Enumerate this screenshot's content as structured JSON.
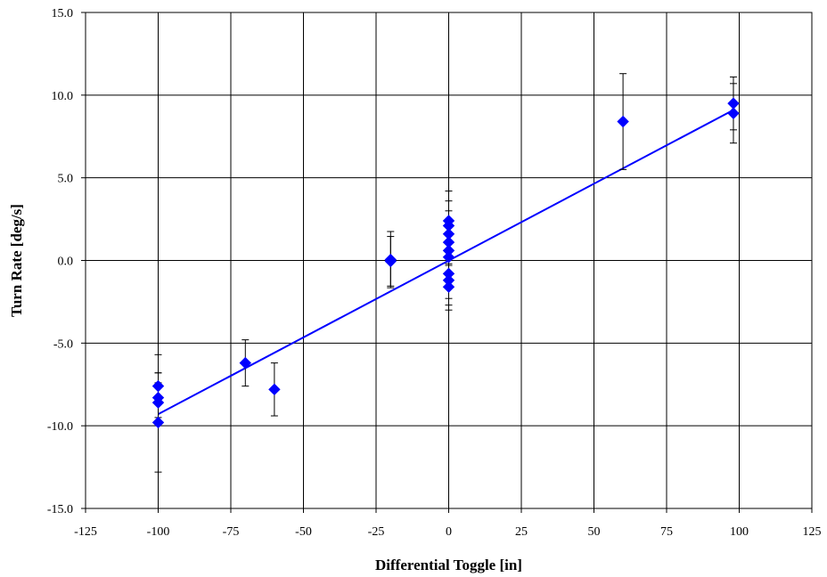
{
  "chart_data": {
    "type": "scatter",
    "title": "",
    "xlabel": "Differential Toggle [in]",
    "ylabel": "Turn Rate [deg/s]",
    "xlim": [
      -125,
      125
    ],
    "ylim": [
      -15,
      15
    ],
    "x_ticks": [
      -125,
      -100,
      -75,
      -50,
      -25,
      0,
      25,
      50,
      75,
      100,
      125
    ],
    "x_tick_labels": [
      "-125",
      "-100",
      "-75",
      "-50",
      "-25",
      "0",
      "25",
      "50",
      "75",
      "100",
      "125"
    ],
    "y_ticks": [
      -15,
      -10,
      -5,
      0,
      5,
      10,
      15
    ],
    "y_tick_labels": [
      "-15.0",
      "-10.0",
      "-5.0",
      "0.0",
      "5.0",
      "10.0",
      "15.0"
    ],
    "grid": true,
    "legend": "none",
    "marker_color": "#0000ff",
    "fit_line_color": "#0000ff",
    "error_bar_color": "#000000",
    "series": [
      {
        "points": [
          {
            "x": -100,
            "y": -7.6,
            "err": 1.9
          },
          {
            "x": -100,
            "y": -8.3,
            "err": 1.5
          },
          {
            "x": -100,
            "y": -8.6,
            "err": 1.2
          },
          {
            "x": -100,
            "y": -9.8,
            "err": 3.0
          },
          {
            "x": -70,
            "y": -6.2,
            "err": 1.4
          },
          {
            "x": -60,
            "y": -7.8,
            "err": 1.6
          },
          {
            "x": -20,
            "y": 0.05,
            "err": 1.7
          },
          {
            "x": -20,
            "y": -0.05,
            "err": 1.5
          },
          {
            "x": 0,
            "y": 2.4,
            "err": 1.8
          },
          {
            "x": 0,
            "y": 2.1,
            "err": 1.5
          },
          {
            "x": 0,
            "y": 1.6,
            "err": 1.4
          },
          {
            "x": 0,
            "y": 1.1,
            "err": 1.4
          },
          {
            "x": 0,
            "y": 0.6,
            "err": 1.4
          },
          {
            "x": 0,
            "y": 0.2,
            "err": 1.3
          },
          {
            "x": 0,
            "y": -0.8,
            "err": 1.5
          },
          {
            "x": 0,
            "y": -1.2,
            "err": 1.5
          },
          {
            "x": 0,
            "y": -1.6,
            "err": 1.4
          },
          {
            "x": 60,
            "y": 8.4,
            "err": 2.9
          },
          {
            "x": 98,
            "y": 9.5,
            "err": 1.6
          },
          {
            "x": 98,
            "y": 8.9,
            "err": 1.8
          }
        ]
      }
    ],
    "fit_line": {
      "x": [
        -100,
        98
      ],
      "y": [
        -9.3,
        9.1
      ]
    }
  }
}
